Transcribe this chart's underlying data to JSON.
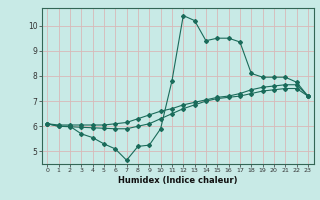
{
  "title": "",
  "xlabel": "Humidex (Indice chaleur)",
  "ylabel": "",
  "bg_color": "#c8eae6",
  "grid_color": "#d8b8b8",
  "line_color": "#1a6b5a",
  "xlim": [
    -0.5,
    23.5
  ],
  "ylim": [
    4.5,
    10.7
  ],
  "xticks": [
    0,
    1,
    2,
    3,
    4,
    5,
    6,
    7,
    8,
    9,
    10,
    11,
    12,
    13,
    14,
    15,
    16,
    17,
    18,
    19,
    20,
    21,
    22,
    23
  ],
  "yticks": [
    5,
    6,
    7,
    8,
    9,
    10
  ],
  "line1_x": [
    0,
    1,
    2,
    3,
    4,
    5,
    6,
    7,
    8,
    9,
    10,
    11,
    12,
    13,
    14,
    15,
    16,
    17,
    18,
    19,
    20,
    21,
    22,
    23
  ],
  "line1_y": [
    6.1,
    6.0,
    6.0,
    5.7,
    5.55,
    5.3,
    5.1,
    4.65,
    5.2,
    5.25,
    5.9,
    7.8,
    10.4,
    10.2,
    9.4,
    9.5,
    9.5,
    9.35,
    8.1,
    7.95,
    7.95,
    7.95,
    7.75,
    7.2
  ],
  "line2_x": [
    0,
    1,
    2,
    3,
    4,
    5,
    6,
    7,
    8,
    9,
    10,
    11,
    12,
    13,
    14,
    15,
    16,
    17,
    18,
    19,
    20,
    21,
    22,
    23
  ],
  "line2_y": [
    6.1,
    6.05,
    6.05,
    6.05,
    6.05,
    6.05,
    6.1,
    6.15,
    6.3,
    6.45,
    6.6,
    6.7,
    6.85,
    6.95,
    7.05,
    7.15,
    7.2,
    7.3,
    7.45,
    7.55,
    7.6,
    7.65,
    7.65,
    7.2
  ],
  "line3_x": [
    0,
    1,
    2,
    3,
    4,
    5,
    6,
    7,
    8,
    9,
    10,
    11,
    12,
    13,
    14,
    15,
    16,
    17,
    18,
    19,
    20,
    21,
    22,
    23
  ],
  "line3_y": [
    6.1,
    6.0,
    5.98,
    5.96,
    5.94,
    5.92,
    5.9,
    5.9,
    6.0,
    6.1,
    6.3,
    6.5,
    6.7,
    6.85,
    7.0,
    7.1,
    7.15,
    7.2,
    7.3,
    7.4,
    7.45,
    7.5,
    7.5,
    7.2
  ],
  "marker": "D",
  "markersize": 2.0,
  "linewidth": 0.8
}
